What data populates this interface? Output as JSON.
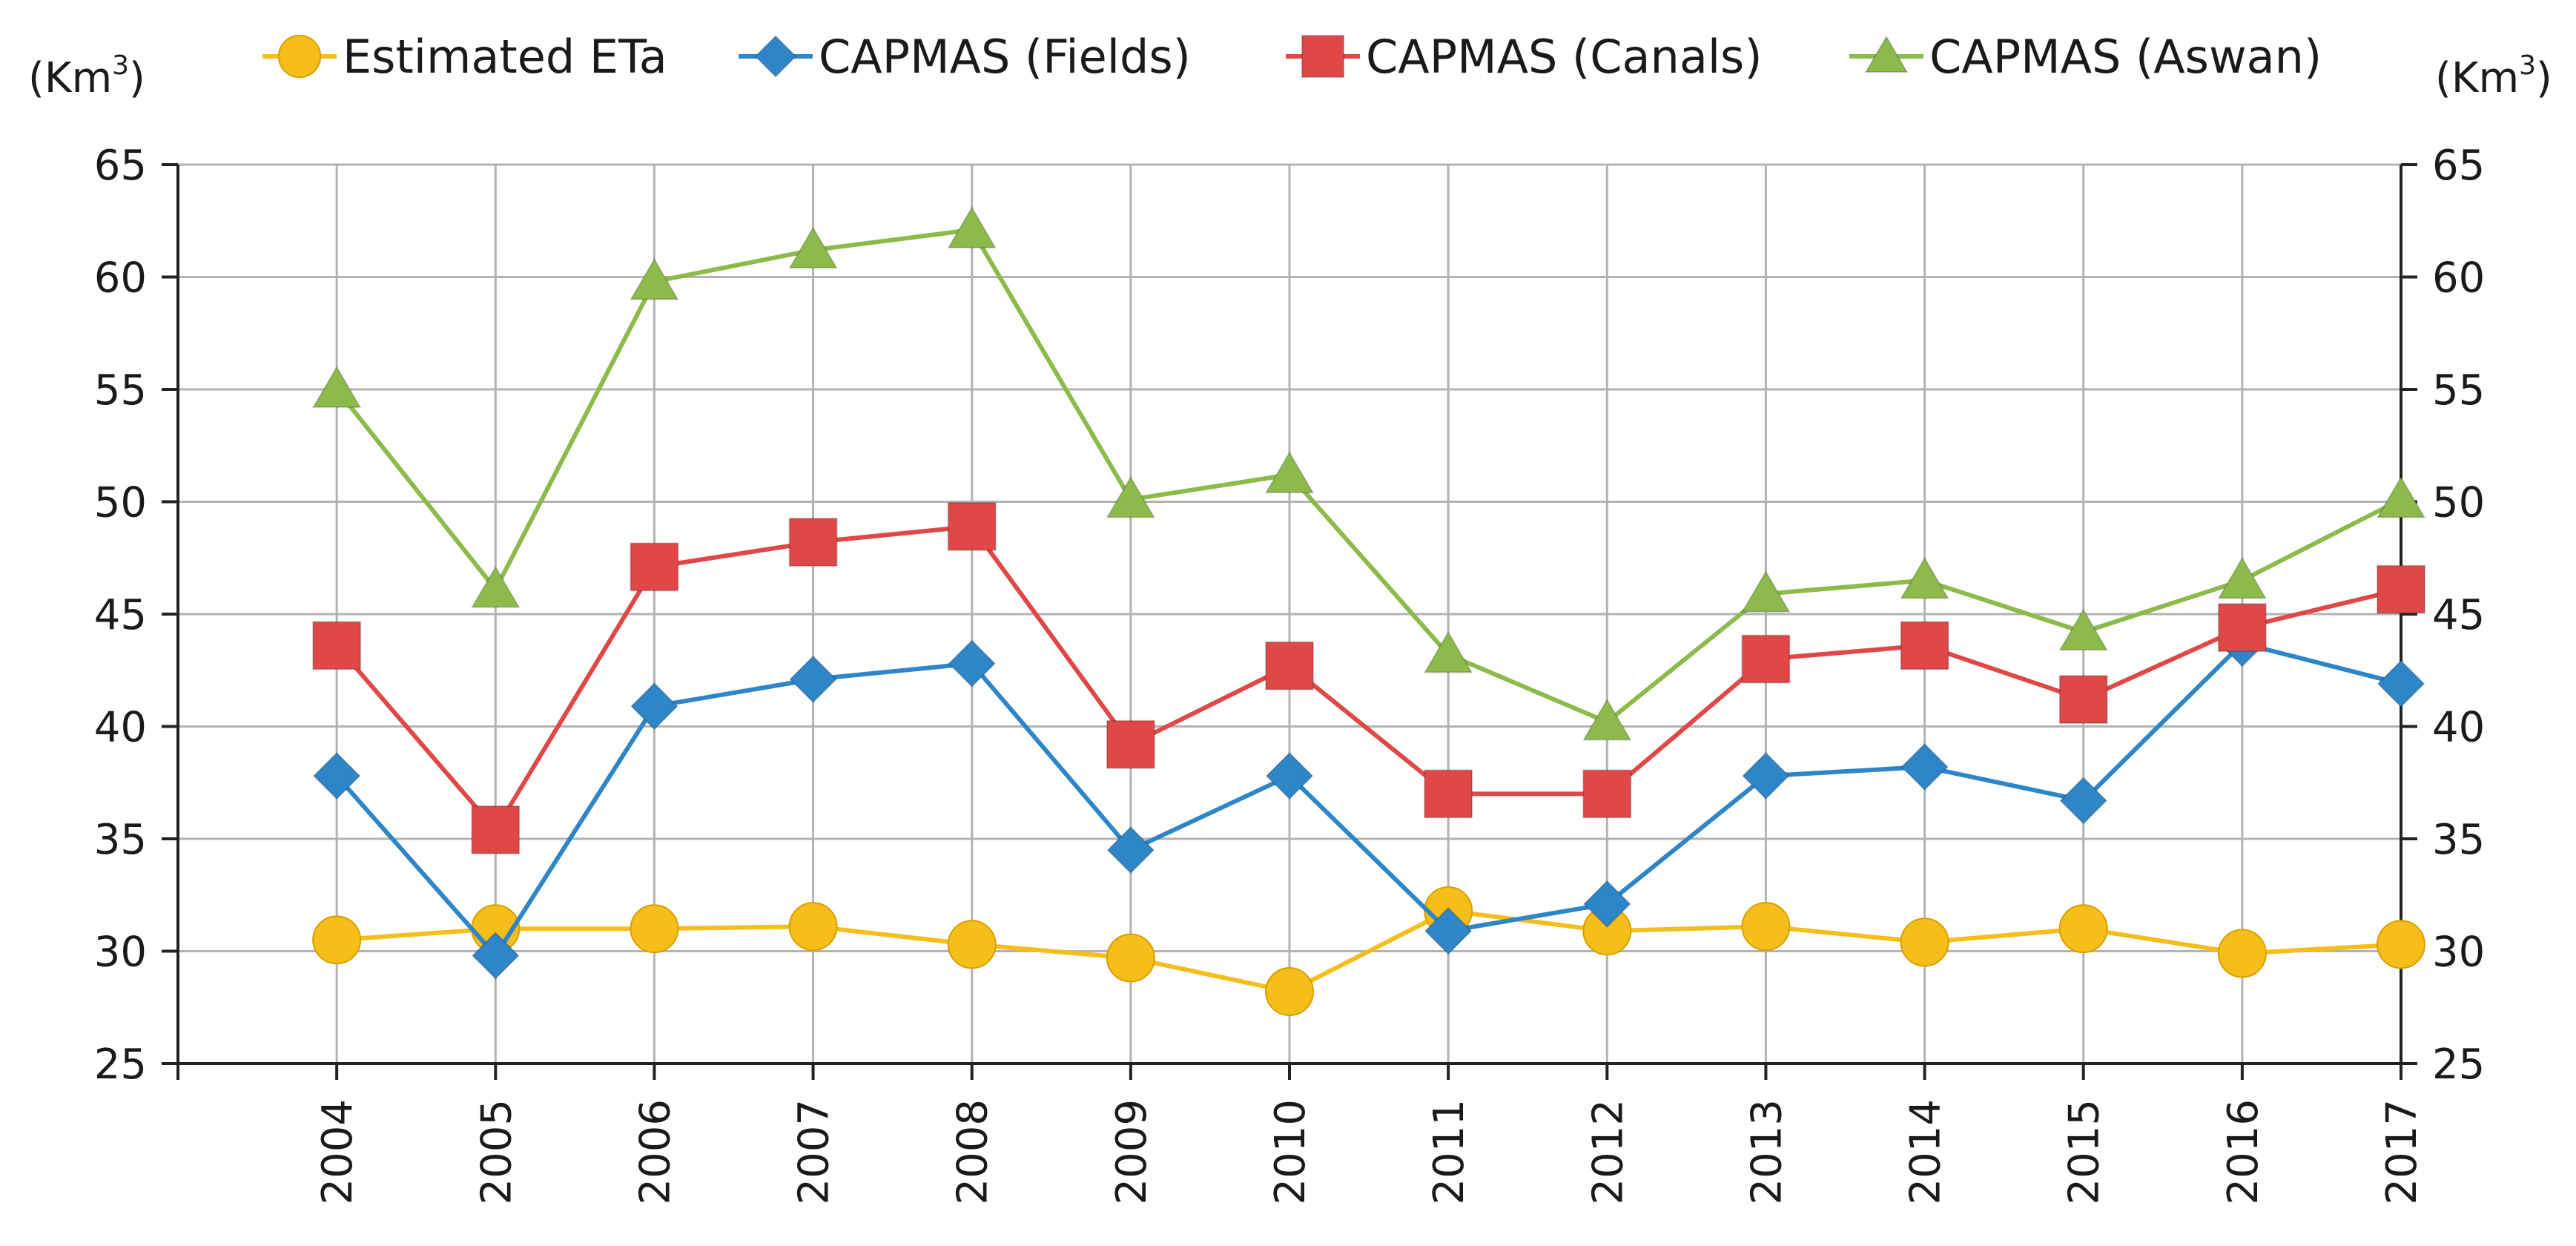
{
  "chart_data": {
    "type": "line",
    "title": "",
    "xlabel": "",
    "ylabel": "",
    "y_unit_left": "(Km",
    "y_unit_right": "(Km",
    "y_unit_sup": "3",
    "y_unit_close": ")",
    "ylim": [
      25,
      65
    ],
    "yticks": [
      "25",
      "30",
      "35",
      "40",
      "45",
      "50",
      "55",
      "60",
      "65"
    ],
    "ytick_values": [
      25,
      30,
      35,
      40,
      45,
      50,
      55,
      60,
      65
    ],
    "categories": [
      "2004",
      "2005",
      "2006",
      "2007",
      "2008",
      "2009",
      "2010",
      "2011",
      "2012",
      "2013",
      "2014",
      "2015",
      "2016",
      "2017"
    ],
    "grid": true,
    "legend_position": "top",
    "series": [
      {
        "name": "Estimated ETa",
        "marker": "circle",
        "color": "#F5BE1A",
        "values": [
          30.5,
          31.0,
          31.0,
          31.1,
          30.3,
          29.7,
          28.2,
          31.8,
          30.9,
          31.1,
          30.4,
          31.0,
          29.9,
          30.3
        ]
      },
      {
        "name": "CAPMAS (Fields)",
        "marker": "diamond",
        "color": "#2E86C8",
        "values": [
          37.8,
          29.8,
          40.9,
          42.1,
          42.8,
          34.5,
          37.8,
          30.9,
          32.1,
          37.8,
          38.2,
          36.7,
          43.7,
          41.9
        ]
      },
      {
        "name": "CAPMAS (Canals)",
        "marker": "square",
        "color": "#E04848",
        "values": [
          43.6,
          35.4,
          47.1,
          48.2,
          48.9,
          39.2,
          42.7,
          37.0,
          37.0,
          43.0,
          43.6,
          41.2,
          44.4,
          46.1
        ]
      },
      {
        "name": "CAPMAS (Aswan)",
        "marker": "triangle",
        "color": "#8DBB4B",
        "values": [
          55.0,
          46.1,
          59.8,
          61.2,
          62.1,
          50.1,
          51.2,
          43.2,
          40.2,
          45.9,
          46.5,
          44.2,
          46.5,
          50.1
        ]
      }
    ]
  }
}
